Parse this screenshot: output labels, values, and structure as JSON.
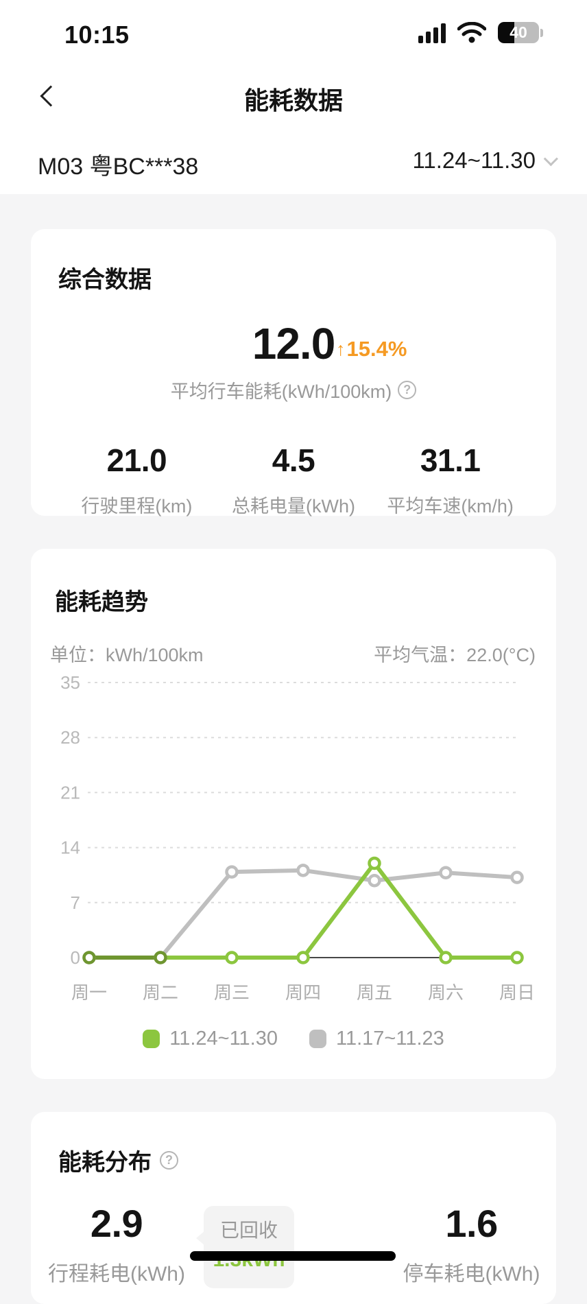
{
  "status_bar": {
    "time": "10:15",
    "battery_percent": 40,
    "battery_label": "40"
  },
  "nav": {
    "title": "能耗数据"
  },
  "vehicle_bar": {
    "vehicle": "M03 粤BC***38",
    "date_range": "11.24~11.30"
  },
  "summary_card": {
    "title": "综合数据",
    "main_value": "12.0",
    "trend_arrow": "↑",
    "trend_percent": "15.4%",
    "main_label": "平均行车能耗(kWh/100km)",
    "help_icon": "?",
    "stats": [
      {
        "value": "21.0",
        "label": "行驶里程(km)"
      },
      {
        "value": "4.5",
        "label": "总耗电量(kWh)"
      },
      {
        "value": "31.1",
        "label": "平均车速(km/h)"
      }
    ]
  },
  "trend_card": {
    "title": "能耗趋势",
    "unit_label": "单位：kWh/100km",
    "temp_label": "平均气温：22.0(°C)"
  },
  "chart_data": {
    "type": "line",
    "title": "能耗趋势",
    "ylabel": "kWh/100km",
    "categories": [
      "周一",
      "周二",
      "周三",
      "周四",
      "周五",
      "周六",
      "周日"
    ],
    "y_ticks": [
      0,
      7,
      14,
      21,
      28,
      35
    ],
    "ylim": [
      0,
      35
    ],
    "grid": "horizontal-dashed",
    "legend_position": "bottom",
    "series": [
      {
        "name": "11.24~11.30",
        "color": "#8cc63f",
        "values": [
          0,
          0,
          0,
          0,
          12.0,
          0,
          0
        ]
      },
      {
        "name": "11.17~11.23",
        "color": "#bfbfbf",
        "values": [
          0,
          0,
          10.9,
          11.1,
          9.8,
          10.8,
          10.2
        ]
      }
    ],
    "overlap_color": "#6f9630",
    "axis_color": "#474747",
    "gridline_color": "#dcdcdc",
    "tick_color": "#b9b9b9",
    "day_label_color": "#adadad"
  },
  "distribution_card": {
    "title": "能耗分布",
    "help_icon": "?",
    "left": {
      "value": "2.9",
      "label": "行程耗电(kWh)"
    },
    "right": {
      "value": "1.6",
      "label": "停车耗电(kWh)"
    },
    "tooltip": {
      "line1": "已回收",
      "line2": "1.3kWh"
    }
  },
  "colors": {
    "accent_green": "#8cc63f",
    "accent_orange": "#f59a23",
    "card_bg": "#ffffff",
    "page_bg": "#f5f5f6"
  }
}
